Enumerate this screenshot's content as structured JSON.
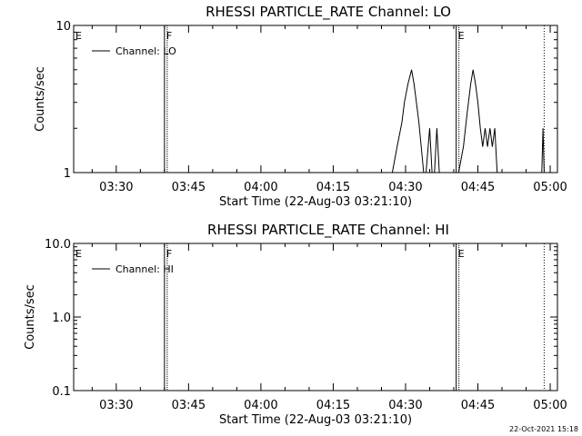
{
  "timestamp": "22-Oct-2021 15:18",
  "chart_data": [
    {
      "type": "line",
      "title": "RHESSI PARTICLE_RATE Channel: LO",
      "xlabel": "Start Time (22-Aug-03 03:21:10)",
      "ylabel": "Counts/sec",
      "yscale": "log",
      "xlim": [
        "03:21:10",
        "05:01:30"
      ],
      "ylim": [
        1,
        10
      ],
      "x_ticks": [
        "03:30",
        "03:45",
        "04:00",
        "04:15",
        "04:30",
        "04:45",
        "05:00"
      ],
      "y_ticks": [
        "1",
        "10"
      ],
      "legend": {
        "position": "top-left",
        "label": "Channel: LO"
      },
      "markers": [
        {
          "time": "03:21:10",
          "label": "E",
          "style": "solid"
        },
        {
          "time": "03:40:00",
          "label": "F",
          "style": "solid"
        },
        {
          "time": "04:40:30",
          "label": "E",
          "style": "solid"
        },
        {
          "time": "04:58:45",
          "label": "",
          "style": "dotted"
        }
      ],
      "series": [
        {
          "name": "Channel: LO",
          "segments": [
            {
              "time": [
                "04:27:15",
                "04:28:15",
                "04:29:15",
                "04:29:45",
                "04:30:30",
                "04:31:15",
                "04:31:45",
                "04:32:15",
                "04:32:45",
                "04:33:15",
                "04:33:45",
                "04:34:15",
                "04:35:00",
                "04:35:30",
                "04:36:00",
                "04:36:30",
                "04:37:00",
                "04:37:30",
                "04:38:00"
              ],
              "value": [
                1,
                1.5,
                2.2,
                3,
                4,
                5,
                4,
                3,
                2.2,
                1.5,
                1,
                1,
                2,
                1,
                1,
                2,
                1,
                1,
                1
              ]
            },
            {
              "time": [
                "04:41:00",
                "04:42:00",
                "04:42:45",
                "04:43:30",
                "04:44:00",
                "04:44:30",
                "04:45:00",
                "04:45:30",
                "04:46:00",
                "04:46:30",
                "04:47:00",
                "04:47:30",
                "04:48:00",
                "04:48:30",
                "04:49:00"
              ],
              "value": [
                1,
                1.5,
                2.5,
                4,
                5,
                4,
                3,
                2,
                1.5,
                2,
                1.5,
                2,
                1.5,
                2,
                1
              ]
            },
            {
              "time": [
                "04:58:15",
                "04:58:30",
                "04:58:45"
              ],
              "value": [
                1,
                2,
                1
              ]
            }
          ]
        }
      ]
    },
    {
      "type": "line",
      "title": "RHESSI PARTICLE_RATE Channel: HI",
      "xlabel": "Start Time (22-Aug-03 03:21:10)",
      "ylabel": "Counts/sec",
      "yscale": "log",
      "xlim": [
        "03:21:10",
        "05:01:30"
      ],
      "ylim": [
        0.1,
        10
      ],
      "x_ticks": [
        "03:30",
        "03:45",
        "04:00",
        "04:15",
        "04:30",
        "04:45",
        "05:00"
      ],
      "y_ticks": [
        "0.1",
        "1.0",
        "10.0"
      ],
      "legend": {
        "position": "top-left",
        "label": "Channel: HI"
      },
      "markers": [
        {
          "time": "03:21:10",
          "label": "E",
          "style": "solid"
        },
        {
          "time": "03:40:00",
          "label": "F",
          "style": "solid"
        },
        {
          "time": "04:40:30",
          "label": "E",
          "style": "solid"
        },
        {
          "time": "04:58:45",
          "label": "",
          "style": "dotted"
        }
      ],
      "series": [
        {
          "name": "Channel: HI",
          "segments": []
        }
      ]
    }
  ]
}
